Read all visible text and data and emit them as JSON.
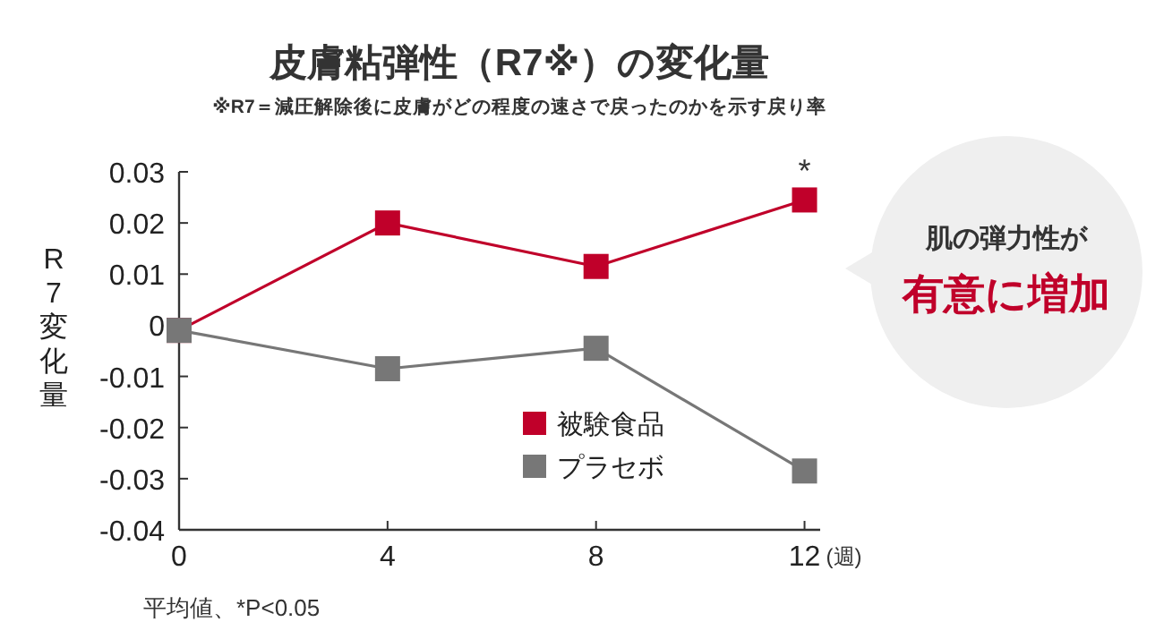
{
  "chart_data": {
    "type": "line",
    "title": "皮膚粘弾性（R7※）の変化量",
    "subtitle": "※R7＝減圧解除後に皮膚がどの程度の速さで戻ったのかを示す戻り率",
    "xlabel": "(週)",
    "ylabel": "R7変化量",
    "x": [
      0,
      4,
      8,
      12
    ],
    "series": [
      {
        "name": "被験食品",
        "color": "#c0002a",
        "values": [
          -0.001,
          0.02,
          0.0115,
          0.0245
        ]
      },
      {
        "name": "プラセボ",
        "color": "#777777",
        "values": [
          -0.001,
          -0.0085,
          -0.0045,
          -0.0285
        ]
      }
    ],
    "xlim": [
      0,
      12.3
    ],
    "xticks": [
      0,
      4,
      8,
      12
    ],
    "ylim": [
      -0.04,
      0.03
    ],
    "yticks": [
      -0.04,
      -0.03,
      -0.02,
      -0.01,
      0,
      0.01,
      0.02,
      0.03
    ],
    "marker": "square",
    "line_style": "solid",
    "grid": false,
    "legend": "bottom right",
    "annotations": [
      {
        "text": "*",
        "x": 12,
        "y": 0.0245
      },
      "肌の弾力性が",
      "有意に増加",
      "平均値、*P<0.05"
    ]
  }
}
